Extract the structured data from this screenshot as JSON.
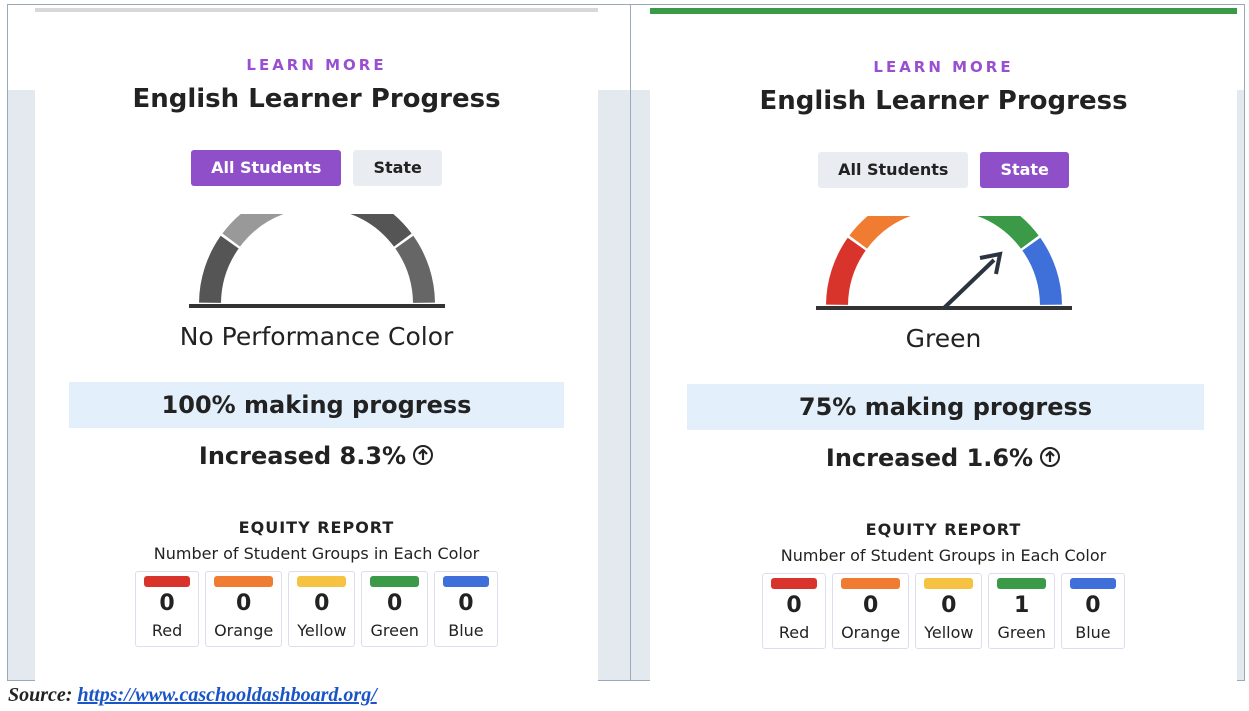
{
  "panels": [
    {
      "learn_more": "LEARN MORE",
      "title": "English Learner Progress",
      "tabs": [
        "All Students",
        "State"
      ],
      "active_tab": 0,
      "performance": "No Performance Color",
      "progress": "100% making progress",
      "change": "Increased 8.3%",
      "equity_title": "EQUITY REPORT",
      "equity_subtitle": "Number of Student Groups in Each Color",
      "groups": [
        {
          "count": 0,
          "color": "Red"
        },
        {
          "count": 0,
          "color": "Orange"
        },
        {
          "count": 0,
          "color": "Yellow"
        },
        {
          "count": 0,
          "color": "Green"
        },
        {
          "count": 0,
          "color": "Blue"
        }
      ]
    },
    {
      "learn_more": "LEARN MORE",
      "title": "English Learner Progress",
      "tabs": [
        "All Students",
        "State"
      ],
      "active_tab": 1,
      "performance": "Green",
      "progress": "75% making progress",
      "change": "Increased 1.6%",
      "equity_title": "EQUITY REPORT",
      "equity_subtitle": "Number of Student Groups in Each Color",
      "groups": [
        {
          "count": 0,
          "color": "Red"
        },
        {
          "count": 0,
          "color": "Orange"
        },
        {
          "count": 0,
          "color": "Yellow"
        },
        {
          "count": 1,
          "color": "Green"
        },
        {
          "count": 0,
          "color": "Blue"
        }
      ]
    }
  ],
  "source": {
    "label": "Source:",
    "link": "https://www.caschooldashboard.org/"
  }
}
